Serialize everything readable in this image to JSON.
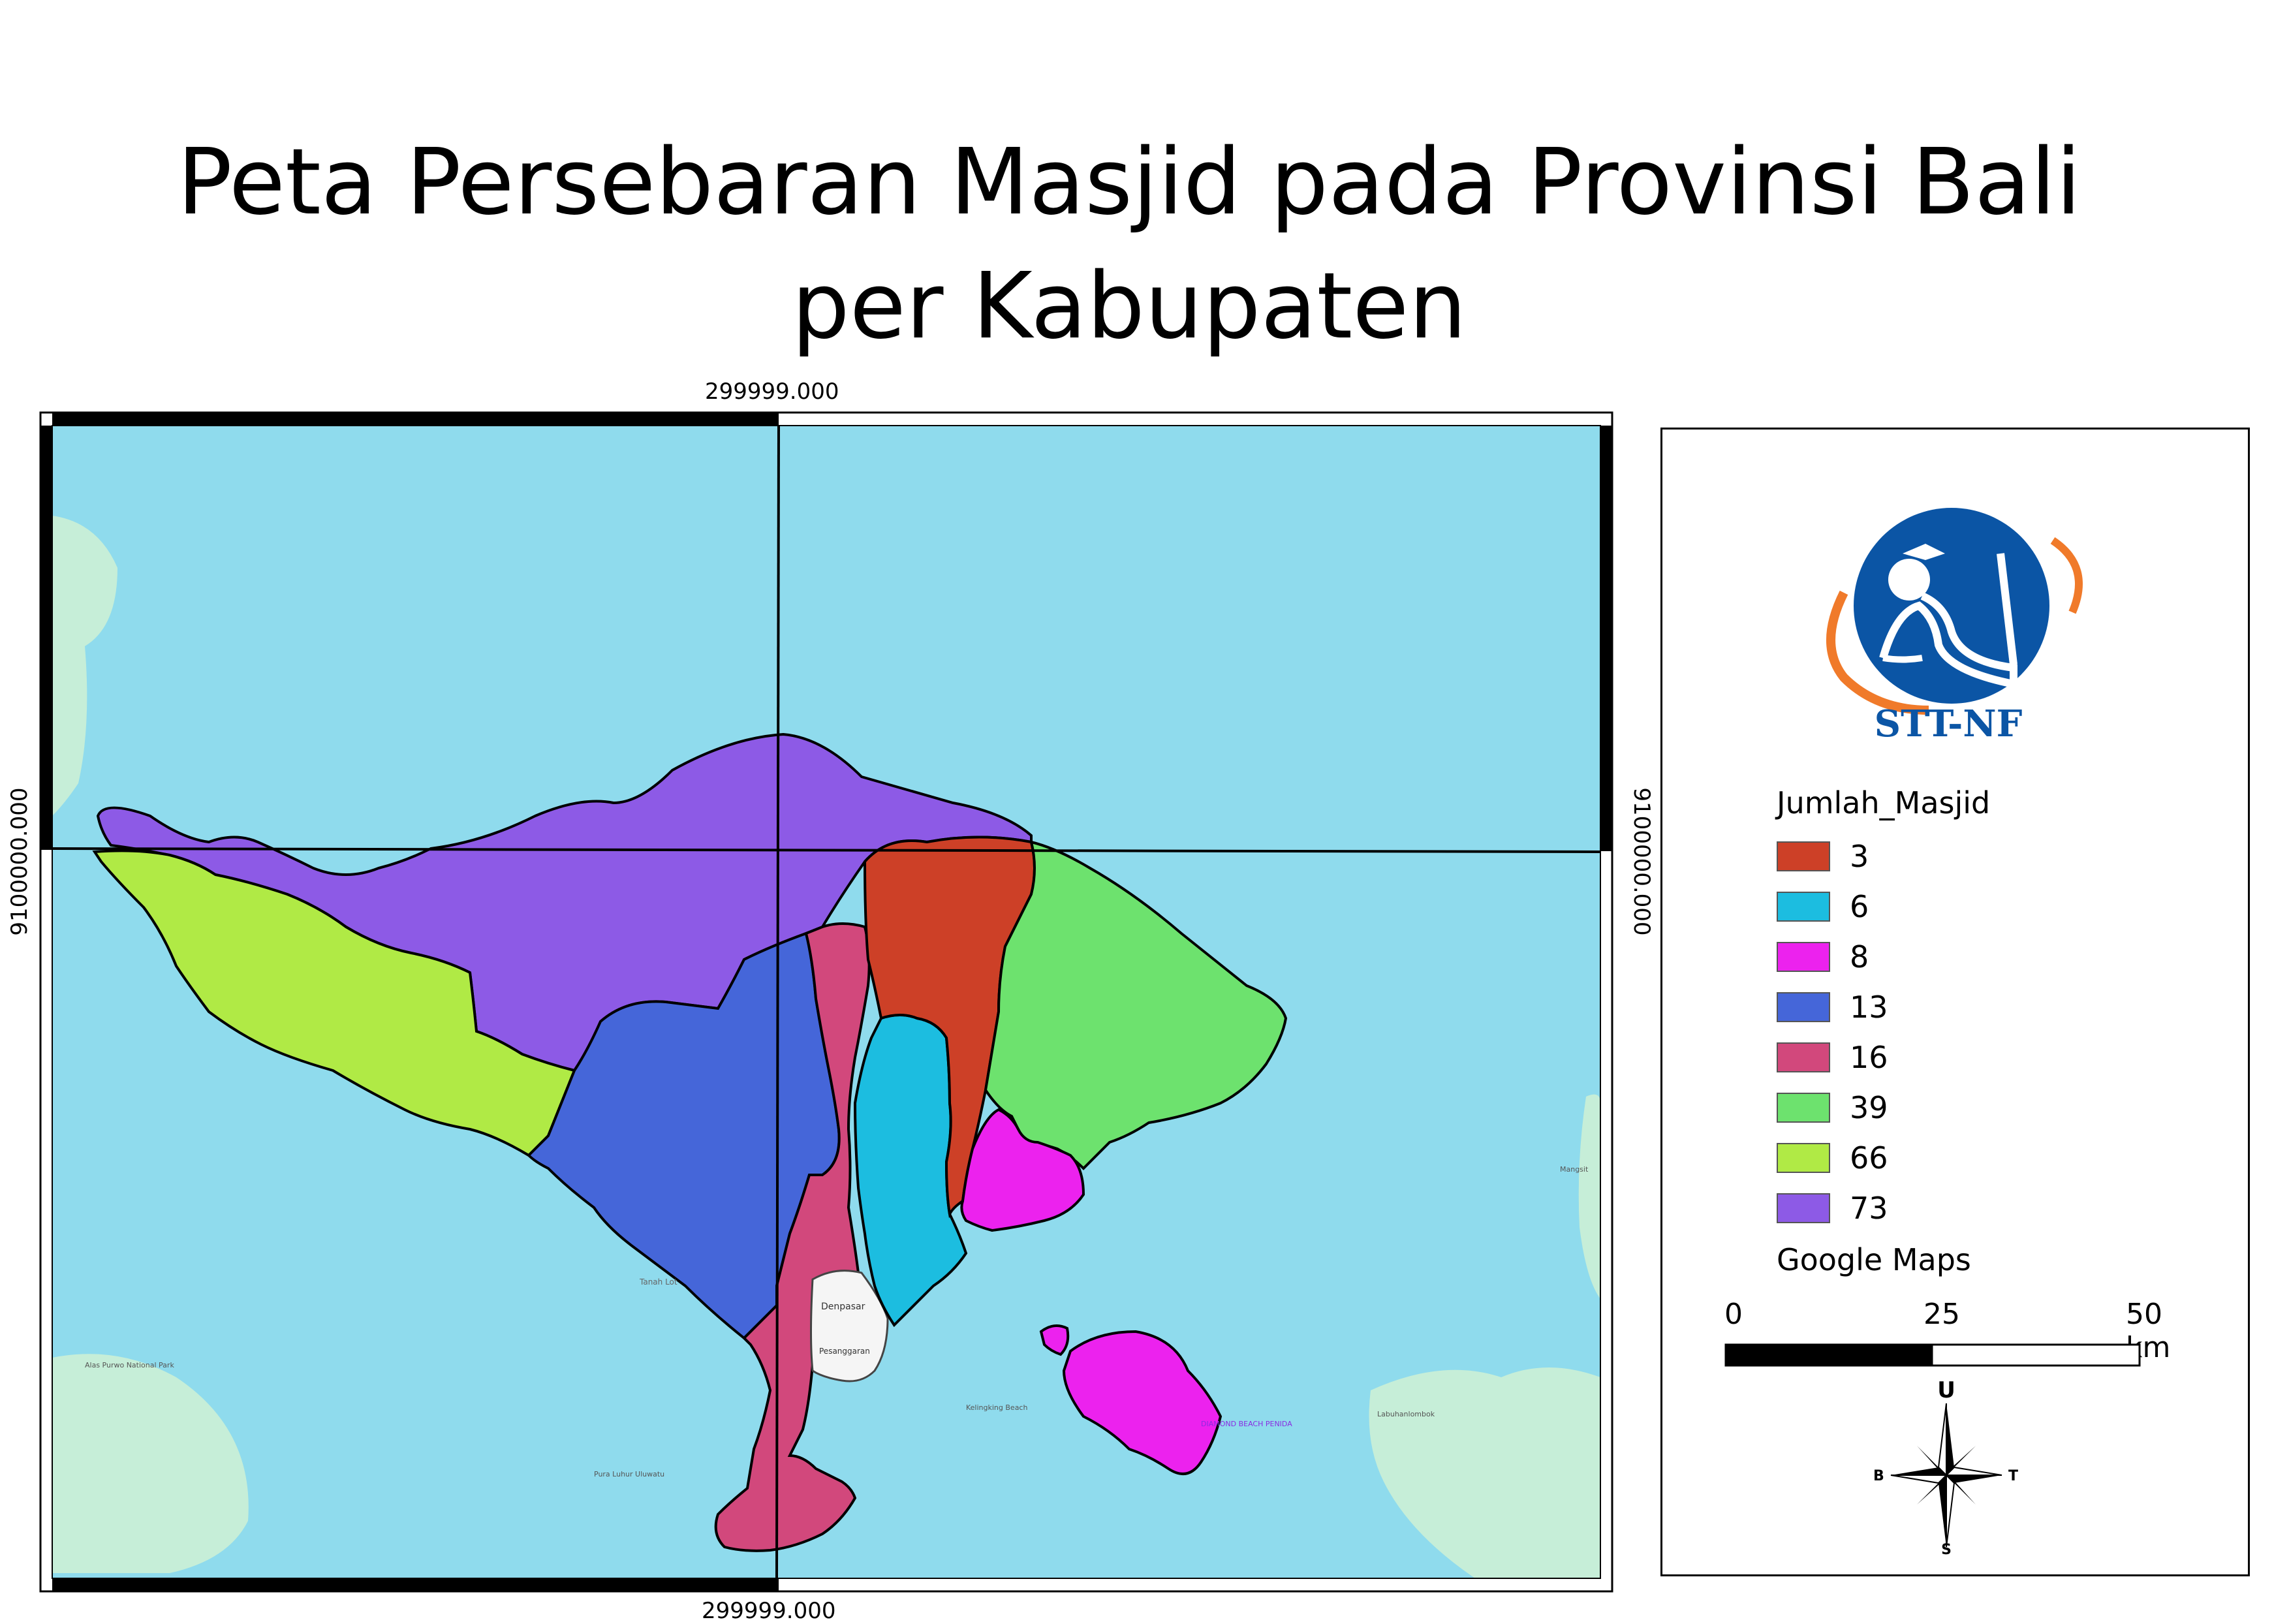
{
  "title": {
    "line1": "Peta Persebaran Masjid pada Provinsi Bali",
    "line2": "per Kabupaten"
  },
  "map": {
    "grid_x_label_top": "299999.000",
    "grid_x_label_bottom": "299999.000",
    "grid_y_label_left": "9100000.000",
    "grid_y_label_right": "9100000.000",
    "water_color": "#8fdbed",
    "land_color": "#c6eed8",
    "region_colors": {
      "3": "#cd4027",
      "6": "#1cbde0",
      "8": "#ec22ee",
      "13": "#4566d9",
      "16": "#d2487c",
      "39": "#6de26e",
      "66": "#b0ea45",
      "73": "#8d5ae6"
    },
    "place_labels": [
      "Denpasar",
      "Pesanggaran",
      "Tanah Lot",
      "Alas Purwo National Park",
      "Labuhanlombok",
      "Mangsit",
      "Kelingking Beach",
      "DIAMOND BEACH PENIDA",
      "Pura Luhur Uluwatu"
    ]
  },
  "legend": {
    "logo_text": "STT-NF",
    "title": "Jumlah_Masjid",
    "items": [
      {
        "label": "3",
        "color": "#cd4027"
      },
      {
        "label": "6",
        "color": "#1cbde0"
      },
      {
        "label": "8",
        "color": "#ec22ee"
      },
      {
        "label": "13",
        "color": "#4566d9"
      },
      {
        "label": "16",
        "color": "#d2487c"
      },
      {
        "label": "39",
        "color": "#6de26e"
      },
      {
        "label": "66",
        "color": "#b0ea45"
      },
      {
        "label": "73",
        "color": "#8d5ae6"
      }
    ],
    "basemap": "Google Maps",
    "scale": {
      "labels": [
        "0",
        "25",
        "50 km"
      ]
    },
    "compass": {
      "north": "U",
      "south": "S",
      "west": "B",
      "east": "T"
    }
  }
}
